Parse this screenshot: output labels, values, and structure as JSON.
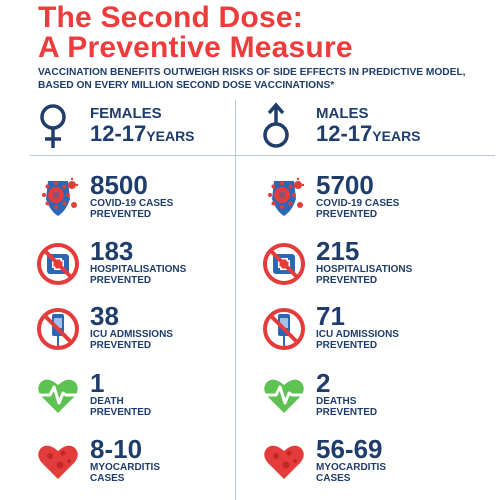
{
  "title_line1": "The Second Dose:",
  "title_line2": "A Preventive Measure",
  "subtitle": "Vaccination benefits outweigh risks of side effects in predictive model, based on every million second dose vaccinations*",
  "colors": {
    "title_red": "#ee3b3b",
    "navy": "#1f3d6b",
    "virus_red": "#e43b3b",
    "shield_blue": "#2c67b5",
    "heart_green": "#5ec252",
    "prohibit_red": "#e43b3b"
  },
  "females": {
    "label": "FEMALES",
    "age": "12-17",
    "age_unit": "YEARS",
    "icon": "female-symbol-icon",
    "stats": [
      {
        "icon": "virus-shield-icon",
        "value": "8500",
        "line1": "COVID-19 CASES",
        "line2": "PREVENTED"
      },
      {
        "icon": "no-hospital-icon",
        "value": "183",
        "line1": "HOSPITALISATIONS",
        "line2": "PREVENTED"
      },
      {
        "icon": "no-icu-icon",
        "value": "38",
        "line1": "ICU ADMISSIONS",
        "line2": "PREVENTED"
      },
      {
        "icon": "heartbeat-icon",
        "value": "1",
        "line1": "DEATH",
        "line2": "PREVENTED"
      },
      {
        "icon": "heart-inflamed-icon",
        "value": "8-10",
        "line1": "MYOCARDITIS",
        "line2": "CASES"
      }
    ]
  },
  "males": {
    "label": "MALES",
    "age": "12-17",
    "age_unit": "YEARS",
    "icon": "male-symbol-icon",
    "stats": [
      {
        "icon": "virus-shield-icon",
        "value": "5700",
        "line1": "COVID-19 CASES",
        "line2": "PREVENTED"
      },
      {
        "icon": "no-hospital-icon",
        "value": "215",
        "line1": "HOSPITALISATIONS",
        "line2": "PREVENTED"
      },
      {
        "icon": "no-icu-icon",
        "value": "71",
        "line1": "ICU ADMISSIONS",
        "line2": "PREVENTED"
      },
      {
        "icon": "heartbeat-icon",
        "value": "2",
        "line1": "DEATHS",
        "line2": "PREVENTED"
      },
      {
        "icon": "heart-inflamed-icon",
        "value": "56-69",
        "line1": "MYOCARDITIS",
        "line2": "CASES"
      }
    ]
  }
}
